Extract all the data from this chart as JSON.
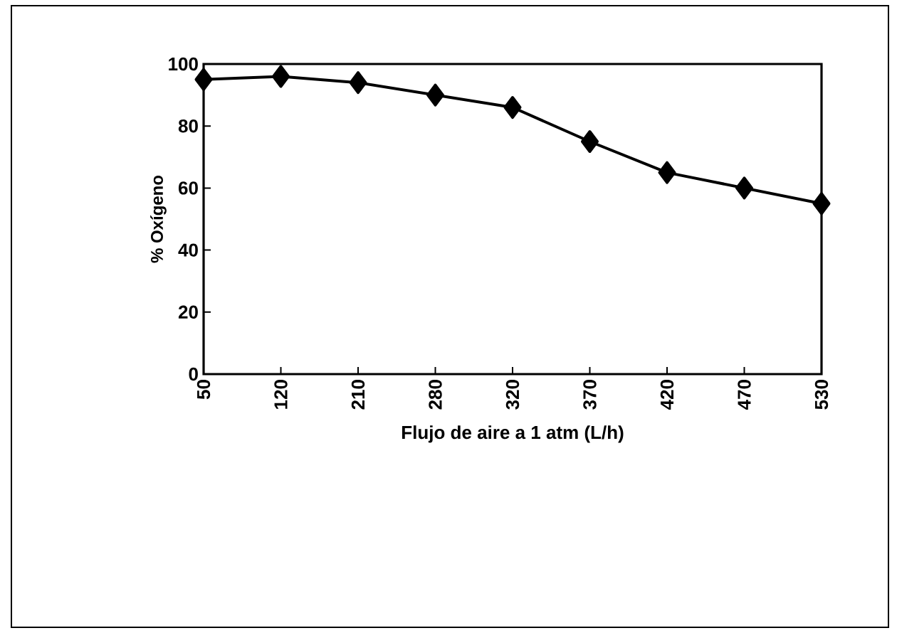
{
  "chart_data": {
    "type": "line",
    "xlabel": "Flujo de aire a 1 atm  (L/h)",
    "ylabel": "% Oxígeno",
    "categories": [
      "50",
      "120",
      "210",
      "280",
      "320",
      "370",
      "420",
      "470",
      "530"
    ],
    "series": [
      {
        "color": "#000000",
        "values": [
          95,
          96,
          94,
          90,
          86,
          75,
          65,
          60,
          55
        ]
      }
    ],
    "ylim": [
      0,
      100
    ],
    "yticks": [
      0,
      20,
      40,
      60,
      80,
      100
    ],
    "grid": false,
    "marker": "diamond",
    "line_style": "solid"
  }
}
